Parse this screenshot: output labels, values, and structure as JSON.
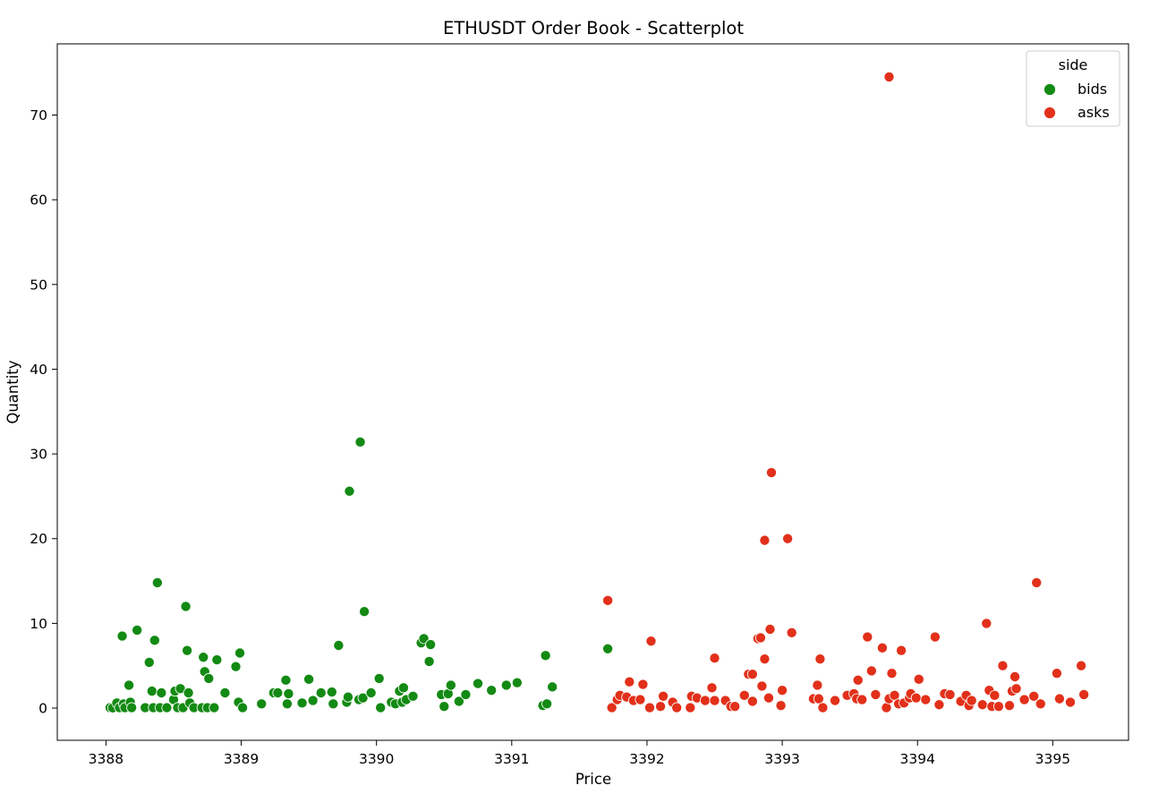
{
  "chart_data": {
    "type": "scatter",
    "title": "ETHUSDT Order Book - Scatterplot",
    "xlabel": "Price",
    "ylabel": "Quantity",
    "xlim": [
      3387.64,
      3395.56
    ],
    "ylim": [
      -3.8,
      78.4
    ],
    "x_ticks": [
      3388,
      3389,
      3390,
      3391,
      3392,
      3393,
      3394,
      3395
    ],
    "y_ticks": [
      0,
      10,
      20,
      30,
      40,
      50,
      60,
      70
    ],
    "grid": false,
    "legend": {
      "title": "side",
      "position": "top-right",
      "entries": [
        "bids",
        "asks"
      ]
    },
    "series": [
      {
        "name": "bids",
        "color": "#138a13",
        "points": [
          [
            3388.03,
            0.05
          ],
          [
            3388.05,
            0.02
          ],
          [
            3388.08,
            0.6
          ],
          [
            3388.1,
            0.05
          ],
          [
            3388.12,
            8.5
          ],
          [
            3388.13,
            0.5
          ],
          [
            3388.14,
            0.05
          ],
          [
            3388.17,
            2.7
          ],
          [
            3388.18,
            0.7
          ],
          [
            3388.19,
            0.05
          ],
          [
            3388.23,
            9.2
          ],
          [
            3388.29,
            0.05
          ],
          [
            3388.32,
            5.4
          ],
          [
            3388.34,
            2.0
          ],
          [
            3388.35,
            0.05
          ],
          [
            3388.36,
            8.0
          ],
          [
            3388.38,
            14.8
          ],
          [
            3388.4,
            0.05
          ],
          [
            3388.41,
            1.8
          ],
          [
            3388.45,
            0.05
          ],
          [
            3388.5,
            1.0
          ],
          [
            3388.51,
            2.0
          ],
          [
            3388.53,
            0.05
          ],
          [
            3388.55,
            2.3
          ],
          [
            3388.57,
            0.05
          ],
          [
            3388.59,
            12.0
          ],
          [
            3388.6,
            6.8
          ],
          [
            3388.61,
            1.8
          ],
          [
            3388.62,
            0.6
          ],
          [
            3388.65,
            0.05
          ],
          [
            3388.71,
            0.05
          ],
          [
            3388.72,
            6.0
          ],
          [
            3388.73,
            4.3
          ],
          [
            3388.75,
            0.05
          ],
          [
            3388.76,
            3.5
          ],
          [
            3388.8,
            0.05
          ],
          [
            3388.82,
            5.7
          ],
          [
            3388.88,
            1.8
          ],
          [
            3388.96,
            4.9
          ],
          [
            3388.98,
            0.7
          ],
          [
            3388.99,
            6.5
          ],
          [
            3389.01,
            0.05
          ],
          [
            3389.15,
            0.5
          ],
          [
            3389.24,
            1.8
          ],
          [
            3389.27,
            1.8
          ],
          [
            3389.33,
            3.3
          ],
          [
            3389.34,
            0.5
          ],
          [
            3389.35,
            1.7
          ],
          [
            3389.45,
            0.6
          ],
          [
            3389.5,
            3.4
          ],
          [
            3389.53,
            0.9
          ],
          [
            3389.59,
            1.8
          ],
          [
            3389.67,
            1.9
          ],
          [
            3389.68,
            0.5
          ],
          [
            3389.72,
            7.4
          ],
          [
            3389.78,
            0.7
          ],
          [
            3389.79,
            1.3
          ],
          [
            3389.8,
            25.6
          ],
          [
            3389.87,
            1.0
          ],
          [
            3389.88,
            31.4
          ],
          [
            3389.9,
            1.2
          ],
          [
            3389.91,
            11.4
          ],
          [
            3389.96,
            1.8
          ],
          [
            3390.02,
            3.5
          ],
          [
            3390.03,
            0.05
          ],
          [
            3390.11,
            0.7
          ],
          [
            3390.14,
            0.5
          ],
          [
            3390.17,
            2.0
          ],
          [
            3390.19,
            0.7
          ],
          [
            3390.2,
            2.4
          ],
          [
            3390.22,
            1.0
          ],
          [
            3390.27,
            1.4
          ],
          [
            3390.33,
            7.7
          ],
          [
            3390.35,
            8.2
          ],
          [
            3390.39,
            5.5
          ],
          [
            3390.4,
            7.5
          ],
          [
            3390.48,
            1.6
          ],
          [
            3390.5,
            0.2
          ],
          [
            3390.53,
            1.7
          ],
          [
            3390.55,
            2.7
          ],
          [
            3390.61,
            0.8
          ],
          [
            3390.66,
            1.6
          ],
          [
            3390.75,
            2.9
          ],
          [
            3390.85,
            2.1
          ],
          [
            3390.96,
            2.7
          ],
          [
            3391.04,
            3.0
          ],
          [
            3391.23,
            0.3
          ],
          [
            3391.25,
            6.2
          ],
          [
            3391.26,
            0.5
          ],
          [
            3391.3,
            2.5
          ],
          [
            3391.71,
            7.0
          ]
        ]
      },
      {
        "name": "asks",
        "color": "#e2301a",
        "points": [
          [
            3391.71,
            12.7
          ],
          [
            3391.74,
            0.05
          ],
          [
            3391.78,
            1.0
          ],
          [
            3391.8,
            1.5
          ],
          [
            3391.85,
            1.3
          ],
          [
            3391.87,
            3.1
          ],
          [
            3391.9,
            0.9
          ],
          [
            3391.95,
            1.0
          ],
          [
            3391.97,
            2.8
          ],
          [
            3392.02,
            0.05
          ],
          [
            3392.03,
            7.9
          ],
          [
            3392.1,
            0.2
          ],
          [
            3392.12,
            1.4
          ],
          [
            3392.19,
            0.7
          ],
          [
            3392.22,
            0.05
          ],
          [
            3392.32,
            0.05
          ],
          [
            3392.33,
            1.4
          ],
          [
            3392.37,
            1.2
          ],
          [
            3392.43,
            0.9
          ],
          [
            3392.48,
            2.4
          ],
          [
            3392.5,
            5.9
          ],
          [
            3392.5,
            0.9
          ],
          [
            3392.58,
            0.9
          ],
          [
            3392.62,
            0.2
          ],
          [
            3392.65,
            0.2
          ],
          [
            3392.72,
            1.5
          ],
          [
            3392.75,
            4.0
          ],
          [
            3392.78,
            4.0
          ],
          [
            3392.78,
            0.8
          ],
          [
            3392.82,
            8.2
          ],
          [
            3392.84,
            8.3
          ],
          [
            3392.85,
            2.6
          ],
          [
            3392.87,
            19.8
          ],
          [
            3392.87,
            5.8
          ],
          [
            3392.9,
            1.2
          ],
          [
            3392.91,
            9.3
          ],
          [
            3392.92,
            27.8
          ],
          [
            3392.99,
            0.3
          ],
          [
            3393.0,
            2.1
          ],
          [
            3393.04,
            20.0
          ],
          [
            3393.07,
            8.9
          ],
          [
            3393.23,
            1.1
          ],
          [
            3393.26,
            2.7
          ],
          [
            3393.27,
            1.1
          ],
          [
            3393.28,
            5.8
          ],
          [
            3393.3,
            0.05
          ],
          [
            3393.39,
            0.9
          ],
          [
            3393.48,
            1.5
          ],
          [
            3393.53,
            1.7
          ],
          [
            3393.55,
            1.1
          ],
          [
            3393.56,
            3.3
          ],
          [
            3393.59,
            1.0
          ],
          [
            3393.63,
            8.4
          ],
          [
            3393.66,
            4.4
          ],
          [
            3393.69,
            1.6
          ],
          [
            3393.74,
            7.1
          ],
          [
            3393.77,
            0.05
          ],
          [
            3393.79,
            1.1
          ],
          [
            3393.79,
            74.5
          ],
          [
            3393.81,
            4.1
          ],
          [
            3393.83,
            1.5
          ],
          [
            3393.86,
            0.5
          ],
          [
            3393.88,
            6.8
          ],
          [
            3393.9,
            0.6
          ],
          [
            3393.94,
            1.2
          ],
          [
            3393.95,
            1.7
          ],
          [
            3393.99,
            1.2
          ],
          [
            3394.01,
            3.4
          ],
          [
            3394.06,
            1.0
          ],
          [
            3394.13,
            8.4
          ],
          [
            3394.16,
            0.4
          ],
          [
            3394.2,
            1.7
          ],
          [
            3394.24,
            1.6
          ],
          [
            3394.32,
            0.8
          ],
          [
            3394.36,
            1.5
          ],
          [
            3394.38,
            0.3
          ],
          [
            3394.4,
            0.9
          ],
          [
            3394.48,
            0.4
          ],
          [
            3394.51,
            10.0
          ],
          [
            3394.53,
            2.1
          ],
          [
            3394.55,
            0.2
          ],
          [
            3394.57,
            1.5
          ],
          [
            3394.6,
            0.2
          ],
          [
            3394.63,
            5.0
          ],
          [
            3394.68,
            0.3
          ],
          [
            3394.7,
            2.0
          ],
          [
            3394.72,
            3.7
          ],
          [
            3394.73,
            2.3
          ],
          [
            3394.79,
            1.0
          ],
          [
            3394.86,
            1.4
          ],
          [
            3394.88,
            14.8
          ],
          [
            3394.91,
            0.5
          ],
          [
            3395.03,
            4.1
          ],
          [
            3395.05,
            1.1
          ],
          [
            3395.13,
            0.7
          ],
          [
            3395.21,
            5.0
          ],
          [
            3395.23,
            1.6
          ]
        ]
      }
    ]
  }
}
